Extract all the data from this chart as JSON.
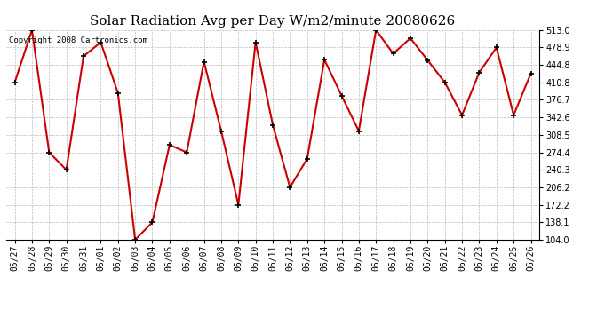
{
  "title": "Solar Radiation Avg per Day W/m2/minute 20080626",
  "copyright_text": "Copyright 2008 Cartronics.com",
  "dates": [
    "05/27",
    "05/28",
    "05/29",
    "05/30",
    "05/31",
    "06/01",
    "06/02",
    "06/03",
    "06/04",
    "06/05",
    "06/06",
    "06/07",
    "06/08",
    "06/09",
    "06/10",
    "06/11",
    "06/12",
    "06/13",
    "06/14",
    "06/15",
    "06/16",
    "06/17",
    "06/18",
    "06/19",
    "06/20",
    "06/21",
    "06/22",
    "06/23",
    "06/24",
    "06/25",
    "06/26"
  ],
  "values": [
    410.8,
    513.0,
    274.4,
    240.3,
    462.0,
    489.0,
    390.0,
    104.0,
    138.1,
    289.0,
    274.4,
    451.0,
    316.0,
    172.2,
    489.0,
    328.0,
    206.2,
    262.0,
    455.0,
    385.0,
    316.0,
    513.0,
    467.0,
    497.0,
    454.0,
    410.8,
    347.0,
    430.0,
    478.9,
    347.0,
    428.0
  ],
  "ylim_min": 104.0,
  "ylim_max": 513.0,
  "yticks": [
    104.0,
    138.1,
    172.2,
    206.2,
    240.3,
    274.4,
    308.5,
    342.6,
    376.7,
    410.8,
    444.8,
    478.9,
    513.0
  ],
  "line_color": "#cc0000",
  "marker_edge_color": "#000000",
  "bg_color": "#ffffff",
  "grid_color": "#bbbbbb",
  "title_fontsize": 11,
  "tick_fontsize": 7,
  "copyright_fontsize": 6.5
}
